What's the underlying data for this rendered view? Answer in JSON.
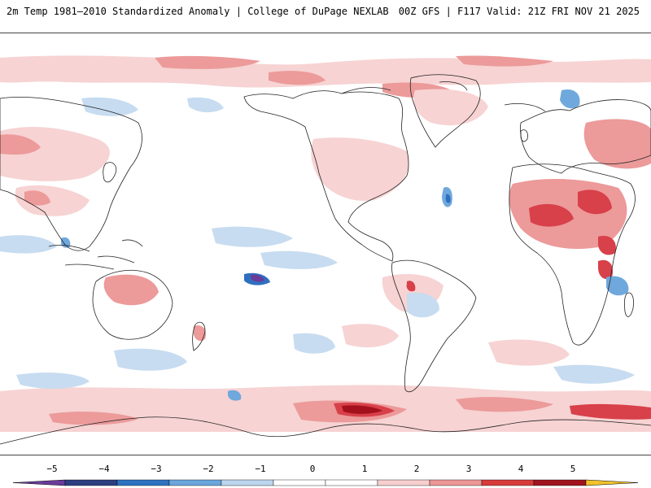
{
  "header": {
    "title": "2m Temp 1981–2010 Standardized Anomaly | College of DuPage NEXLAB",
    "run_info": "00Z GFS | F117 Valid: 21Z FRI NOV 21 2025"
  },
  "colorbar": {
    "ticks": [
      {
        "value": -5,
        "label": "−5"
      },
      {
        "value": -4,
        "label": "−4"
      },
      {
        "value": -3,
        "label": "−3"
      },
      {
        "value": -2,
        "label": "−2"
      },
      {
        "value": -1,
        "label": "−1"
      },
      {
        "value": 0,
        "label": "0"
      },
      {
        "value": 1,
        "label": "1"
      },
      {
        "value": 2,
        "label": "2"
      },
      {
        "value": 3,
        "label": "3"
      },
      {
        "value": 4,
        "label": "4"
      },
      {
        "value": 5,
        "label": "5"
      }
    ],
    "bins": [
      {
        "from": -5,
        "to": -4,
        "color": "#2c3f80"
      },
      {
        "from": -4,
        "to": -3,
        "color": "#2e72c0"
      },
      {
        "from": -3,
        "to": -2,
        "color": "#6aa6dc"
      },
      {
        "from": -2,
        "to": -1,
        "color": "#bcd6ef"
      },
      {
        "from": -1,
        "to": 0,
        "color": "#ffffff"
      },
      {
        "from": 0,
        "to": 1,
        "color": "#ffffff"
      },
      {
        "from": 1,
        "to": 2,
        "color": "#f7cfcf"
      },
      {
        "from": 2,
        "to": 3,
        "color": "#ec9696"
      },
      {
        "from": 3,
        "to": 4,
        "color": "#d83a3a"
      },
      {
        "from": 4,
        "to": 5,
        "color": "#a0141e"
      }
    ],
    "low_extension_color": "#6a3c9a",
    "high_extension_color": "#f2c22a"
  },
  "map": {
    "ocean_color": "#ffffff",
    "coast_color": "#222222",
    "warm_light": "#f7d3d3",
    "warm_mid": "#ec9a9a",
    "warm_strong": "#d8404a",
    "warm_extreme": "#a4101c",
    "cold_light": "#c7dcf0",
    "cold_mid": "#6fa8dc",
    "cold_strong": "#2f6fc0",
    "cold_extreme": "#6a3c9a"
  }
}
